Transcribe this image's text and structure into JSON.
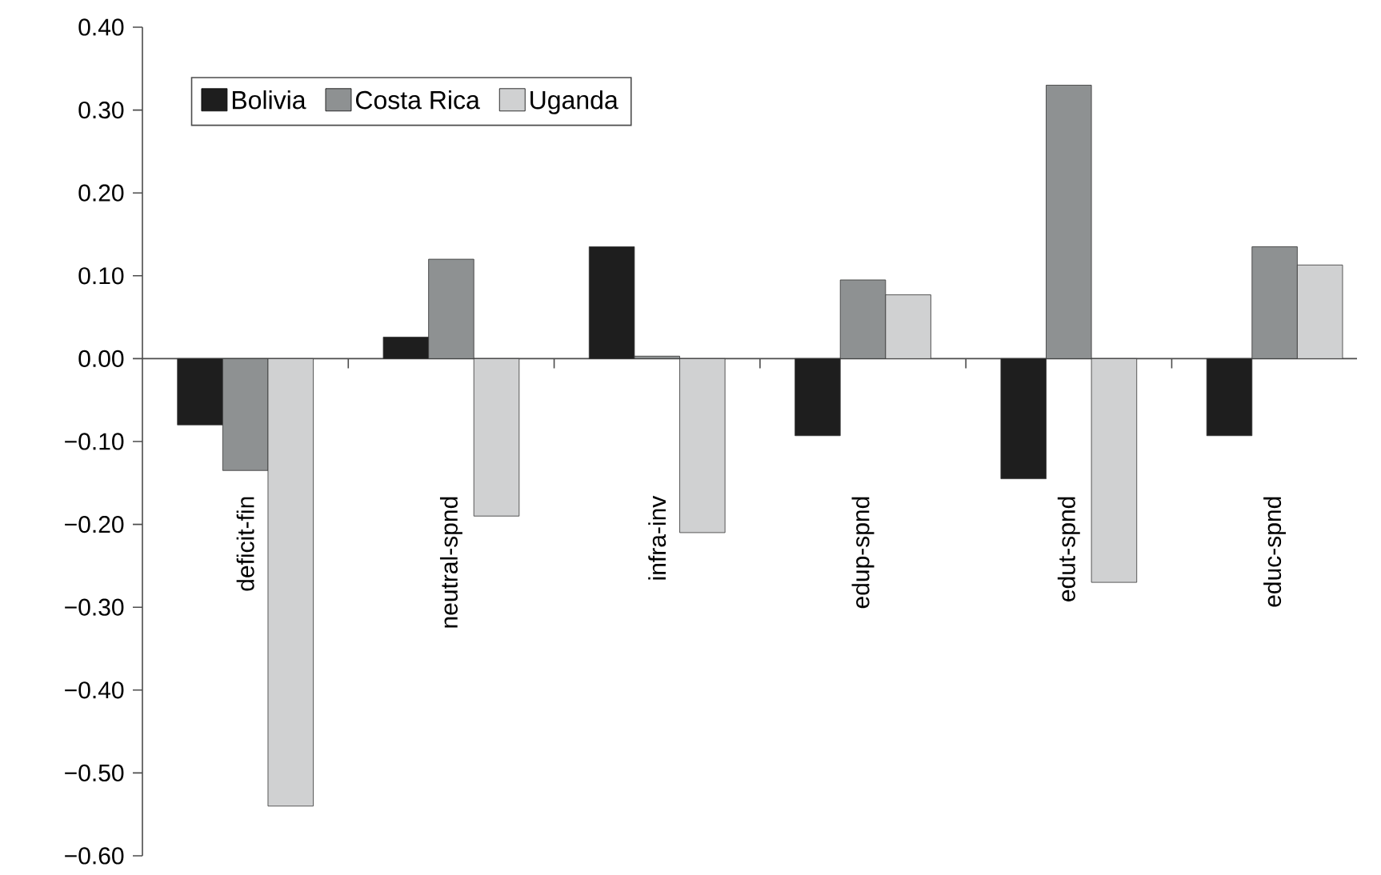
{
  "chart_data": {
    "type": "bar",
    "categories": [
      "deficit-fin",
      "neutral-spnd",
      "infra-inv",
      "edup-spnd",
      "edut-spnd",
      "educ-spnd"
    ],
    "series": [
      {
        "name": "Bolivia",
        "color": "#1e1e1e",
        "values": [
          -0.08,
          0.026,
          0.135,
          -0.093,
          -0.145,
          -0.093
        ]
      },
      {
        "name": "Costa Rica",
        "color": "#8e9192",
        "values": [
          -0.135,
          0.12,
          0.003,
          0.095,
          0.33,
          0.135
        ]
      },
      {
        "name": "Uganda",
        "color": "#d0d1d2",
        "values": [
          -0.54,
          -0.19,
          -0.21,
          0.077,
          -0.27,
          0.113
        ]
      }
    ],
    "ylim": [
      -0.6,
      0.4
    ],
    "yticks": [
      {
        "value": 0.4,
        "label": "0.40"
      },
      {
        "value": 0.3,
        "label": "0.30"
      },
      {
        "value": 0.2,
        "label": "0.20"
      },
      {
        "value": 0.1,
        "label": "0.10"
      },
      {
        "value": 0.0,
        "label": "0.00"
      },
      {
        "value": -0.1,
        "label": "−0.10"
      },
      {
        "value": -0.2,
        "label": "−0.20"
      },
      {
        "value": -0.3,
        "label": "−0.30"
      },
      {
        "value": -0.4,
        "label": "−0.40"
      },
      {
        "value": -0.5,
        "label": "−0.50"
      },
      {
        "value": -0.6,
        "label": "−0.60"
      }
    ],
    "legend": "top left"
  }
}
